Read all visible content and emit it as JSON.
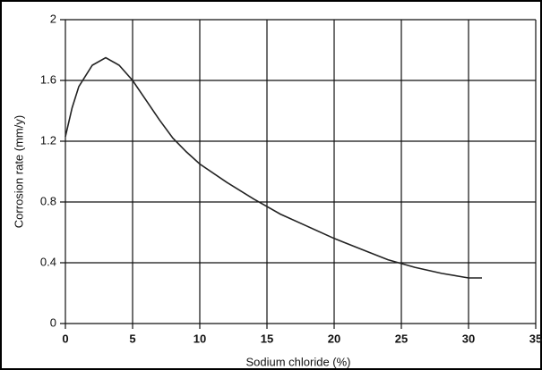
{
  "chart_data": {
    "type": "line",
    "x_label": "Sodium chloride (%)",
    "y_label": "Corrosion rate (mm/y)",
    "x": [
      0,
      0.5,
      1,
      2,
      3,
      4,
      5,
      6,
      7,
      8,
      9,
      10,
      12,
      14,
      15,
      16,
      18,
      20,
      22,
      24,
      26,
      28,
      30,
      31
    ],
    "values": [
      1.23,
      1.42,
      1.56,
      1.7,
      1.75,
      1.7,
      1.6,
      1.47,
      1.34,
      1.22,
      1.13,
      1.05,
      0.93,
      0.82,
      0.77,
      0.72,
      0.64,
      0.56,
      0.49,
      0.42,
      0.37,
      0.33,
      0.3,
      0.3
    ],
    "color": "#222222",
    "xlim": [
      0,
      35
    ],
    "xticks": [
      0,
      5,
      10,
      15,
      20,
      25,
      30,
      35
    ],
    "ylim": [
      0,
      2
    ],
    "yticks": [
      0,
      0.4,
      0.8,
      1.2,
      1.6,
      2
    ],
    "grid": true
  }
}
